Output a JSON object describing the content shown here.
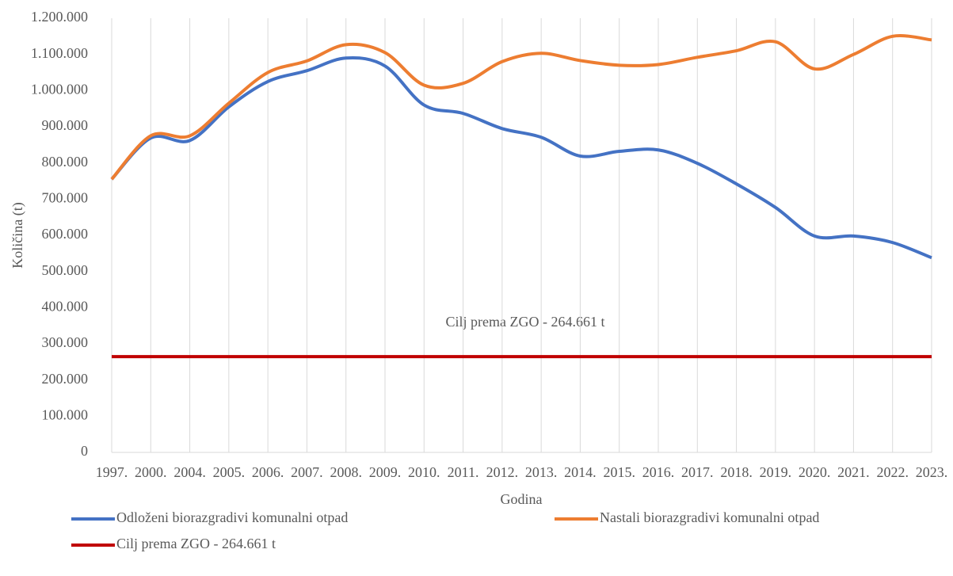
{
  "chart_data": {
    "type": "line",
    "annotation": "Cilj prema ZGO - 264.661 t",
    "x_label": "Godina",
    "y_label": "Količina (t)",
    "categories": [
      "1997.",
      "2000.",
      "2004.",
      "2005.",
      "2006.",
      "2007.",
      "2008.",
      "2009.",
      "2010.",
      "2011.",
      "2012.",
      "2013.",
      "2014.",
      "2015.",
      "2016.",
      "2017.",
      "2018.",
      "2019.",
      "2020.",
      "2021.",
      "2022.",
      "2023."
    ],
    "series": [
      {
        "name": "Odloženi biorazgradivi komunalni otpad",
        "color": "#4472c4",
        "values": [
          755000,
          869000,
          862000,
          955000,
          1025000,
          1055000,
          1090000,
          1068000,
          960000,
          937000,
          895000,
          871000,
          819000,
          832000,
          836000,
          799000,
          742000,
          677000,
          598000,
          598000,
          580000,
          538000
        ]
      },
      {
        "name": "Nastali biorazgradivi komunalni otpad",
        "color": "#ed7d31",
        "values": [
          755000,
          875000,
          875000,
          965000,
          1050000,
          1082000,
          1127000,
          1105000,
          1015000,
          1020000,
          1080000,
          1103000,
          1083000,
          1070000,
          1072000,
          1092000,
          1110000,
          1135000,
          1060000,
          1100000,
          1150000,
          1140000
        ]
      },
      {
        "name": "Cilj prema ZGO - 264.661 t",
        "color": "#c00000",
        "values": [
          264661,
          264661,
          264661,
          264661,
          264661,
          264661,
          264661,
          264661,
          264661,
          264661,
          264661,
          264661,
          264661,
          264661,
          264661,
          264661,
          264661,
          264661,
          264661,
          264661,
          264661,
          264661
        ]
      }
    ],
    "ylim": [
      0,
      1200000
    ],
    "yticks": [
      0,
      {
        "value": 100000,
        "label": "100.000"
      },
      {
        "value": 200000,
        "label": "200.000"
      },
      {
        "value": 300000,
        "label": "300.000"
      },
      {
        "value": 400000,
        "label": "400.000"
      },
      {
        "value": 500000,
        "label": "500.000"
      },
      {
        "value": 600000,
        "label": "600.000"
      },
      {
        "value": 700000,
        "label": "700.000"
      },
      {
        "value": 800000,
        "label": "800.000"
      },
      {
        "value": 900000,
        "label": "900.000"
      },
      {
        "value": 1000000,
        "label": "1.000.000"
      },
      {
        "value": 1100000,
        "label": "1.100.000"
      },
      {
        "value": 1200000,
        "label": "1.200.000"
      }
    ],
    "xgrid": true,
    "smooth": true
  }
}
